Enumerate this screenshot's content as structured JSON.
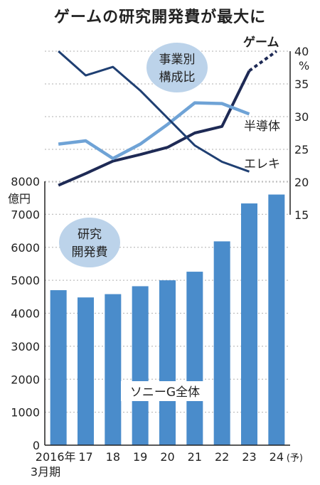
{
  "title": "ゲームの研究開発費が最大に",
  "colors": {
    "bar": "#4a8ccb",
    "game": "#1e2a55",
    "semiconductor": "#6fa3d6",
    "electronics": "#1f3f72",
    "bubble": "#bcd3ea",
    "grid": "#bfbfbf"
  },
  "chart_data": [
    {
      "type": "bar",
      "categories": [
        "2016年\n3月期",
        "17",
        "18",
        "19",
        "20",
        "21",
        "22",
        "23",
        "24(予)"
      ],
      "x_tick_labels": [
        "2016年",
        "17",
        "18",
        "19",
        "20",
        "21",
        "22",
        "23",
        "24"
      ],
      "x_sub_label": "3月期",
      "forecast_suffix": "(予)",
      "values": [
        4700,
        4480,
        4580,
        4820,
        5000,
        5260,
        6180,
        7330,
        7600
      ],
      "ylim": [
        0,
        8000
      ],
      "y_ticks": [
        "0",
        "1000",
        "2000",
        "3000",
        "4000",
        "5000",
        "6000",
        "7000",
        "8000"
      ],
      "y_unit": "億円",
      "bubble_label": [
        "研究",
        "開発費"
      ],
      "series_label": "ソニーG全体"
    },
    {
      "type": "line",
      "bubble_label": [
        "事業別",
        "構成比"
      ],
      "y_unit": "%",
      "ylim": [
        15,
        40
      ],
      "y_ticks": [
        "15",
        "20",
        "25",
        "30",
        "35",
        "40"
      ],
      "series": [
        {
          "name": "ゲーム",
          "values": [
            19.5,
            21.3,
            23.2,
            24.2,
            25.3,
            27.5,
            28.5,
            37.0,
            40.0
          ],
          "forecast_from": 7
        },
        {
          "name": "半導体",
          "values": [
            25.8,
            26.3,
            23.6,
            25.8,
            28.8,
            32.1,
            32.0,
            30.4
          ]
        },
        {
          "name": "エレキ",
          "values": [
            40.0,
            36.3,
            37.6,
            34.0,
            29.8,
            25.6,
            23.1,
            21.6
          ]
        }
      ]
    }
  ]
}
